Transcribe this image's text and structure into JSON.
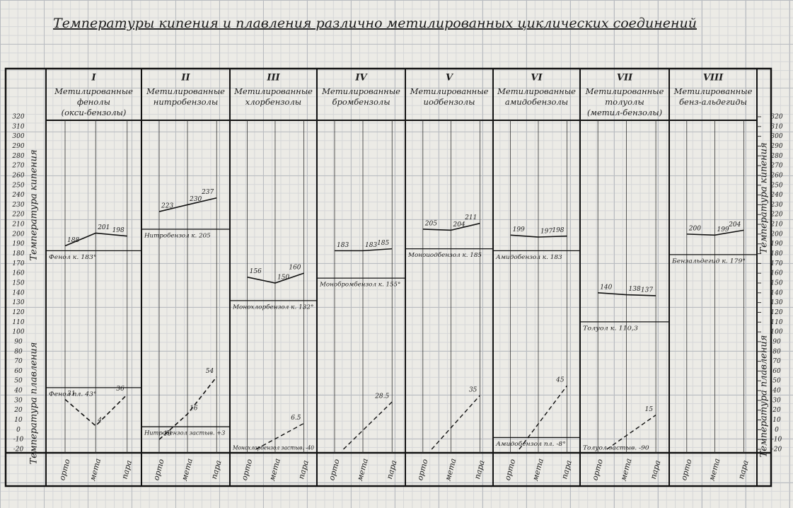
{
  "chart_data": {
    "type": "line",
    "title": "Температуры кипения и плавления различно метилированных циклических соединений",
    "y_label_boiling": "Температура кипения",
    "y_label_melting": "Температура плавления",
    "categories": [
      "орто",
      "мета",
      "пара"
    ],
    "ylim": [
      -20,
      320
    ],
    "yticks": [
      -20,
      -10,
      0,
      10,
      20,
      30,
      40,
      50,
      60,
      70,
      80,
      90,
      100,
      110,
      120,
      130,
      140,
      150,
      160,
      170,
      180,
      190,
      200,
      210,
      220,
      230,
      240,
      250,
      260,
      270,
      280,
      290,
      300,
      310,
      320
    ],
    "panels": [
      {
        "roman": "I",
        "title": [
          "Метилированные",
          "фенолы",
          "(окси-бензолы)"
        ],
        "boiling": [
          188,
          201,
          198
        ],
        "melting": [
          31,
          4,
          36
        ],
        "boiling_ref": {
          "label": "Фенол к. 183°",
          "value": 183
        },
        "melting_ref": {
          "label": "Фенол пл. 43°",
          "value": 43
        }
      },
      {
        "roman": "II",
        "title": [
          "Метилированные",
          "нитробензолы"
        ],
        "boiling": [
          223,
          230,
          237
        ],
        "melting": [
          -10,
          16,
          54
        ],
        "boiling_ref": {
          "label": "Нитробензол к. 205",
          "value": 205
        },
        "melting_ref": {
          "label": "Нитробензол застыв. +3",
          "value": 3
        }
      },
      {
        "roman": "III",
        "title": [
          "Метилированные",
          "хлорбензолы"
        ],
        "boiling": [
          156,
          150,
          160
        ],
        "melting": [
          null,
          null,
          6.5
        ],
        "boiling_ref": {
          "label": "Монохлорбензол к. 132°",
          "value": 132
        },
        "melting_ref": {
          "label": "Монохлорбензол застыв. -40"
        }
      },
      {
        "roman": "IV",
        "title": [
          "Метилированные",
          "бромбензолы"
        ],
        "boiling": [
          183,
          183,
          185
        ],
        "melting": [
          null,
          null,
          28.5
        ],
        "boiling_ref": {
          "label": "Монобромбензол к. 155°",
          "value": 155
        }
      },
      {
        "roman": "V",
        "title": [
          "Метилированные",
          "иодбензолы"
        ],
        "boiling": [
          205,
          204,
          211
        ],
        "melting": [
          null,
          null,
          35
        ],
        "boiling_ref": {
          "label": "Моноиодбензол к. 185",
          "value": 185
        }
      },
      {
        "roman": "VI",
        "title": [
          "Метилированные",
          "амидобензолы"
        ],
        "boiling": [
          199,
          197,
          198
        ],
        "melting": [
          null,
          null,
          45
        ],
        "boiling_ref": {
          "label": "Амидобензол к. 183",
          "value": 183
        },
        "melting_ref": {
          "label": "Амидобензол пл. -8°",
          "value": -8
        }
      },
      {
        "roman": "VII",
        "title": [
          "Метилированные",
          "толуолы",
          "(метил-бензолы)"
        ],
        "boiling": [
          140,
          138,
          137
        ],
        "melting": [
          null,
          null,
          15
        ],
        "boiling_ref": {
          "label": "Толуол к. 110,3",
          "value": 110.3
        },
        "melting_ref": {
          "label": "Толуол застыв. -90"
        }
      },
      {
        "roman": "VIII",
        "title": [
          "Метилированные",
          "бенз-альдегиды"
        ],
        "boiling": [
          200,
          199,
          204
        ],
        "melting": [
          null,
          null,
          null
        ],
        "boiling_ref": {
          "label": "Бензальдегид к. 179°",
          "value": 179
        }
      }
    ]
  }
}
